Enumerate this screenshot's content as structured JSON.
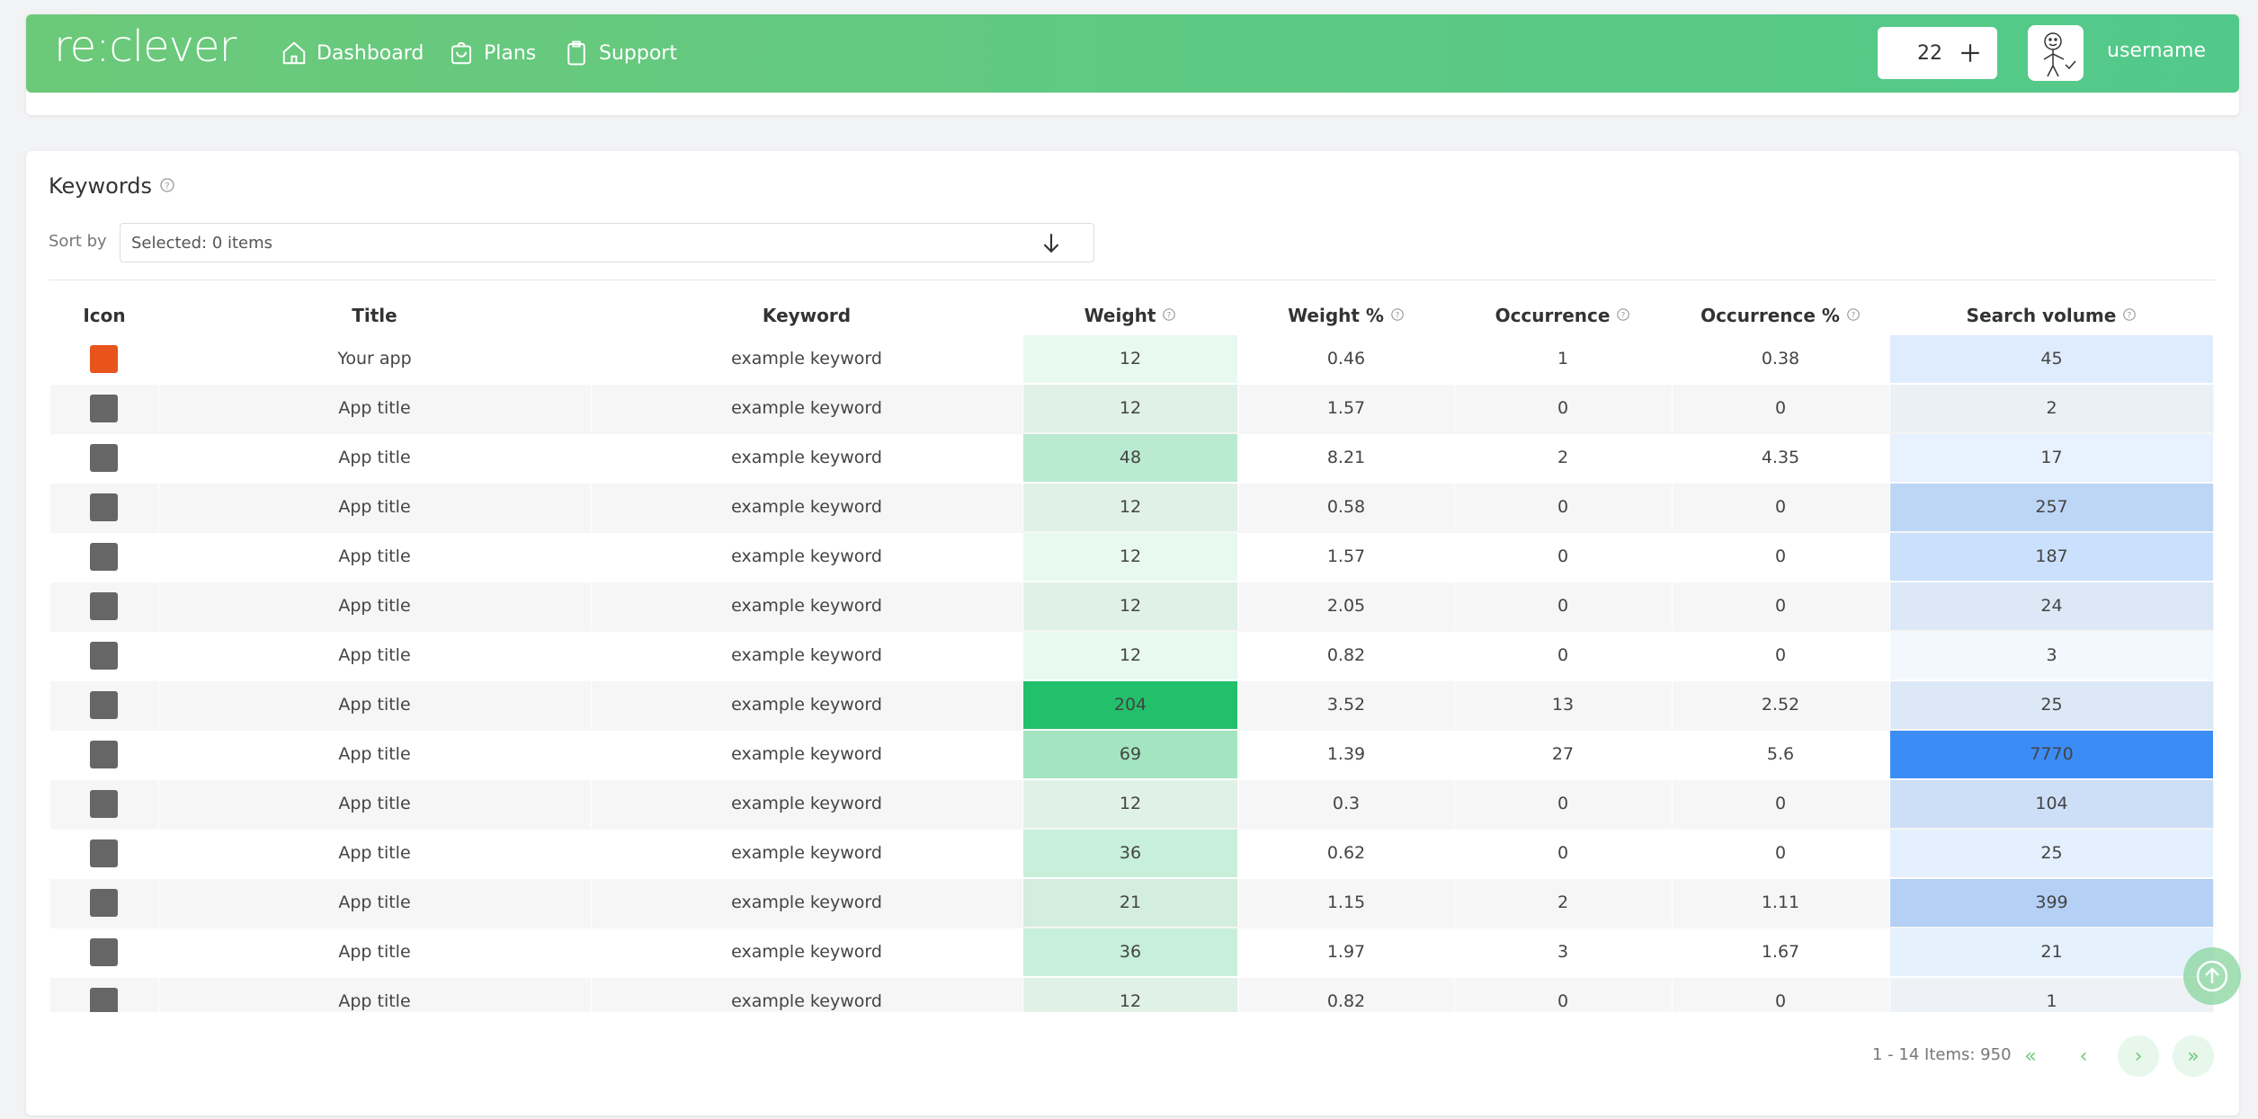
{
  "header": {
    "logo": "re:clever",
    "nav": [
      "Dashboard",
      "Plans",
      "Support"
    ],
    "credits": "22",
    "username": "username"
  },
  "keywords": {
    "title": "Keywords",
    "sort_label": "Sort by",
    "sort_placeholder": "Selected: 0 items",
    "columns": [
      "Icon",
      "Title",
      "Keyword",
      "Weight",
      "Weight %",
      "Occurrence",
      "Occurrence %",
      "Search volume"
    ],
    "weight_color": "#22c06a",
    "volume_color": "#3b8cf5",
    "rows": [
      [
        "Your app",
        "example keyword",
        12,
        0.46,
        1,
        0.38,
        45
      ],
      [
        "App title",
        "example keyword",
        12,
        1.57,
        0,
        0,
        2
      ],
      [
        "App title",
        "example keyword",
        48,
        8.21,
        2,
        4.35,
        17
      ],
      [
        "App title",
        "example keyword",
        12,
        0.58,
        0,
        0,
        257
      ],
      [
        "App title",
        "example keyword",
        12,
        1.57,
        0,
        0,
        187
      ],
      [
        "App title",
        "example keyword",
        12,
        2.05,
        0,
        0,
        24
      ],
      [
        "App title",
        "example keyword",
        12,
        0.82,
        0,
        0,
        3
      ],
      [
        "App title",
        "example keyword",
        204,
        3.52,
        13,
        2.52,
        25
      ],
      [
        "App title",
        "example keyword",
        69,
        1.39,
        27,
        5.6,
        7770
      ],
      [
        "App title",
        "example keyword",
        12,
        0.3,
        0,
        0,
        104
      ],
      [
        "App title",
        "example keyword",
        36,
        0.62,
        0,
        0,
        25
      ],
      [
        "App title",
        "example keyword",
        21,
        1.15,
        2,
        1.11,
        399
      ],
      [
        "App title",
        "example keyword",
        36,
        1.97,
        3,
        1.67,
        21
      ],
      [
        "App title",
        "example keyword",
        12,
        0.82,
        0,
        0,
        1
      ]
    ]
  },
  "pagination": {
    "range": "1 - 14",
    "items": "Items: 950"
  }
}
